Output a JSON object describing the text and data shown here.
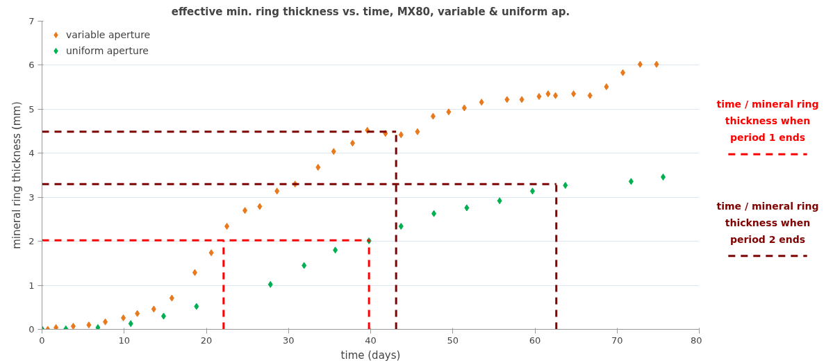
{
  "chart_data": {
    "type": "scatter",
    "title": "effective min. ring thickness vs. time, MX80, variable & uniform ap.",
    "xlabel": "time (days)",
    "ylabel": "mineral ring thickness (mm)",
    "xlim": [
      0,
      80
    ],
    "xticks": [
      0,
      10,
      20,
      30,
      40,
      50,
      60,
      70,
      80
    ],
    "ylim": [
      0,
      7
    ],
    "yticks": [
      0,
      1,
      2,
      3,
      4,
      5,
      6,
      7
    ],
    "grid": "y",
    "legend": "top left",
    "series": [
      {
        "name": "variable aperture",
        "color": "#e8791c",
        "marker": "diamond",
        "x": [
          0.7,
          1.7,
          3.8,
          5.7,
          7.7,
          9.9,
          11.6,
          13.6,
          15.8,
          18.6,
          20.6,
          22.5,
          24.7,
          26.5,
          28.6,
          30.8,
          33.6,
          35.5,
          37.8,
          39.6,
          41.8,
          43.7,
          45.7,
          47.6,
          49.5,
          51.4,
          53.5,
          56.6,
          58.4,
          60.5,
          61.6,
          62.5,
          64.7,
          66.7,
          68.7,
          70.7,
          72.8,
          74.8
        ],
        "values": [
          0.0,
          0.04,
          0.07,
          0.1,
          0.17,
          0.26,
          0.36,
          0.46,
          0.71,
          1.29,
          1.74,
          2.34,
          2.7,
          2.79,
          3.14,
          3.3,
          3.68,
          4.04,
          4.23,
          4.52,
          4.45,
          4.42,
          4.49,
          4.84,
          4.94,
          5.03,
          5.16,
          5.22,
          5.22,
          5.29,
          5.35,
          5.31,
          5.35,
          5.31,
          5.51,
          5.83,
          6.02,
          6.02
        ]
      },
      {
        "name": "uniform aperture",
        "color": "#00b050",
        "marker": "diamond",
        "x": [
          0,
          2.9,
          6.8,
          10.8,
          14.8,
          18.8,
          27.8,
          31.9,
          35.7,
          39.8,
          43.7,
          47.7,
          51.7,
          55.7,
          59.7,
          63.7,
          71.7,
          75.6
        ],
        "values": [
          0.01,
          0.01,
          0.04,
          0.13,
          0.3,
          0.52,
          1.02,
          1.45,
          1.8,
          2.01,
          2.34,
          2.63,
          2.76,
          2.92,
          3.14,
          3.27,
          3.36,
          3.46
        ]
      },
      {
        "type": "line",
        "line_style": "dashed",
        "color": "#ff0000",
        "x": [
          0,
          39.8
        ],
        "values": [
          2.02,
          2.02
        ]
      },
      {
        "type": "line",
        "line_style": "dashed",
        "color": "#ff0000",
        "x": [
          22.1,
          22.1
        ],
        "values": [
          0,
          2.02
        ]
      },
      {
        "type": "line",
        "line_style": "dashed",
        "color": "#ff0000",
        "x": [
          39.8,
          39.8
        ],
        "values": [
          0,
          2.02
        ]
      },
      {
        "type": "line",
        "line_style": "dashed",
        "color": "#7f0000",
        "x": [
          0,
          43.1
        ],
        "values": [
          4.49,
          4.49
        ]
      },
      {
        "type": "line",
        "line_style": "dashed",
        "color": "#7f0000",
        "x": [
          43.1,
          43.1
        ],
        "values": [
          0,
          4.49
        ]
      },
      {
        "type": "line",
        "line_style": "dashed",
        "color": "#7f0000",
        "x": [
          0,
          62.6
        ],
        "values": [
          3.3,
          3.3
        ]
      },
      {
        "type": "line",
        "line_style": "dashed",
        "color": "#7f0000",
        "x": [
          62.6,
          62.6
        ],
        "values": [
          0,
          3.3
        ]
      }
    ],
    "annotations": [
      "time / mineral ring thickness when period 1 ends",
      "time / mineral ring thickness when period 2 ends"
    ]
  }
}
